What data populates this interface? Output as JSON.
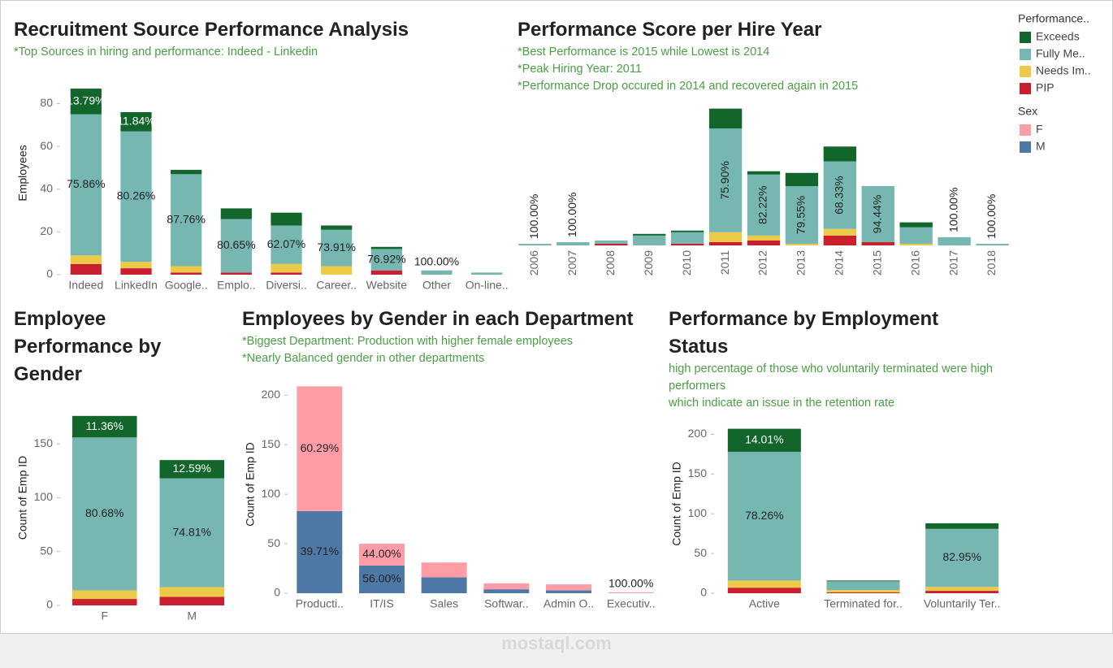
{
  "watermark": "mostaql.com",
  "chart_data": [
    {
      "type": "stacked_bar",
      "title": "Recruitment Source Performance Analysis",
      "notes": [
        "*Top Sources in hiring and performance: Indeed - Linkedin"
      ],
      "y_label": "Employees",
      "legend_title": "Performance..",
      "categories": [
        "Indeed",
        "LinkedIn",
        "Google..",
        "Emplo..",
        "Diversi..",
        "Career..",
        "Website",
        "Other",
        "On-line.."
      ],
      "series": [
        {
          "name": "Exceeds",
          "color": "#12652b",
          "values": [
            12,
            9,
            2,
            5,
            6,
            2,
            1,
            0,
            0
          ],
          "percent_labels": [
            "13.79%",
            "11.84%",
            null,
            null,
            null,
            null,
            null,
            null,
            null
          ]
        },
        {
          "name": "Fully Me..",
          "color": "#76b7b2",
          "values": [
            66,
            61,
            43,
            25,
            18,
            17,
            10,
            2,
            1
          ],
          "percent_labels": [
            "75.86%",
            "80.26%",
            "87.76%",
            "80.65%",
            "62.07%",
            "73.91%",
            "76.92%",
            "100.00%",
            null
          ]
        },
        {
          "name": "Needs Im..",
          "color": "#edc948",
          "values": [
            4,
            3,
            3,
            0,
            4,
            4,
            0,
            0,
            0
          ]
        },
        {
          "name": "PIP",
          "color": "#c91f2e",
          "values": [
            5,
            3,
            1,
            1,
            1,
            0,
            2,
            0,
            0
          ]
        }
      ],
      "ylim": [
        0,
        95
      ],
      "yticks": [
        0,
        20,
        40,
        60,
        80
      ]
    },
    {
      "type": "stacked_bar",
      "title": "Performance Score per Hire Year",
      "notes": [
        "*Best Performance is 2015 while Lowest is 2014",
        "*Peak Hiring Year: 2011",
        "*Performance Drop occured in 2014 and recovered again in 2015"
      ],
      "categories": [
        "2006",
        "2007",
        "2008",
        "2009",
        "2010",
        "2011",
        "2012",
        "2013",
        "2014",
        "2015",
        "2016",
        "2017",
        "2018"
      ],
      "series": [
        {
          "name": "Exceeds",
          "color": "#12652b",
          "values": [
            0,
            0,
            0,
            1,
            1,
            12,
            2,
            8,
            9,
            0,
            3,
            0,
            0
          ]
        },
        {
          "name": "Fully Me..",
          "color": "#76b7b2",
          "values": [
            1,
            2,
            2,
            6,
            7,
            63,
            37,
            35,
            41,
            34,
            10,
            5,
            1
          ],
          "percent_labels": [
            "100.00%",
            "100.00%",
            null,
            null,
            null,
            "75.90%",
            "82.22%",
            "79.55%",
            "68.33%",
            "94.44%",
            null,
            "100.00%",
            "100.00%"
          ]
        },
        {
          "name": "Needs Im..",
          "color": "#edc948",
          "values": [
            0,
            0,
            0,
            0,
            0,
            6,
            3,
            1,
            4,
            0,
            1,
            0,
            0
          ]
        },
        {
          "name": "PIP",
          "color": "#c91f2e",
          "values": [
            0,
            0,
            1,
            0,
            1,
            2,
            3,
            0,
            6,
            2,
            0,
            0,
            0
          ]
        }
      ]
    },
    {
      "type": "stacked_bar",
      "title": "Employee Performance by Gender",
      "y_label": "Count of Emp ID",
      "categories": [
        "F",
        "M"
      ],
      "series": [
        {
          "name": "Exceeds",
          "color": "#12652b",
          "values": [
            20,
            17
          ],
          "percent_labels": [
            "11.36%",
            "12.59%"
          ]
        },
        {
          "name": "Fully Me..",
          "color": "#76b7b2",
          "values": [
            142,
            101
          ],
          "percent_labels": [
            "80.68%",
            "74.81%"
          ]
        },
        {
          "name": "Needs Im..",
          "color": "#edc948",
          "values": [
            8,
            9
          ]
        },
        {
          "name": "PIP",
          "color": "#c91f2e",
          "values": [
            6,
            8
          ]
        }
      ],
      "ylim": [
        0,
        200
      ],
      "yticks": [
        0,
        50,
        100,
        150
      ]
    },
    {
      "type": "stacked_bar",
      "title": "Employees by Gender in each Department",
      "notes": [
        "*Biggest Department: Production with higher female employees",
        "*Nearly Balanced gender in other departments"
      ],
      "y_label": "Count of Emp ID",
      "legend_title": "Sex",
      "categories": [
        "Producti..",
        "IT/IS",
        "Sales",
        "Softwar..",
        "Admin O..",
        "Executiv.."
      ],
      "series": [
        {
          "name": "F",
          "color": "#ff9da7",
          "values": [
            126,
            22,
            15,
            6,
            6,
            1
          ],
          "percent_labels": [
            "60.29%",
            "44.00%",
            null,
            null,
            null,
            "100.00%"
          ]
        },
        {
          "name": "M",
          "color": "#4e79a7",
          "values": [
            83,
            28,
            16,
            4,
            3,
            0
          ],
          "percent_labels": [
            "39.71%",
            "56.00%",
            null,
            null,
            null,
            null
          ]
        }
      ],
      "ylim": [
        0,
        220
      ],
      "yticks": [
        0,
        50,
        100,
        150,
        200
      ]
    },
    {
      "type": "stacked_bar",
      "title": "Performance by Employment Status",
      "notes": [
        "high percentage of those who voluntarily terminated were high performers",
        "which indicate an issue in the retention rate"
      ],
      "y_label": "Count of Emp ID",
      "categories": [
        "Active",
        "Terminated for..",
        "Voluntarily Ter.."
      ],
      "series": [
        {
          "name": "Exceeds",
          "color": "#12652b",
          "values": [
            29,
            1,
            7
          ],
          "percent_labels": [
            "14.01%",
            null,
            null
          ]
        },
        {
          "name": "Fully Me..",
          "color": "#76b7b2",
          "values": [
            162,
            11,
            73
          ],
          "percent_labels": [
            "78.26%",
            null,
            "82.95%"
          ]
        },
        {
          "name": "Needs Im..",
          "color": "#edc948",
          "values": [
            9,
            3,
            5
          ]
        },
        {
          "name": "PIP",
          "color": "#c91f2e",
          "values": [
            7,
            1,
            3
          ]
        }
      ],
      "ylim": [
        0,
        225
      ],
      "yticks": [
        0,
        50,
        100,
        150,
        200
      ]
    }
  ]
}
